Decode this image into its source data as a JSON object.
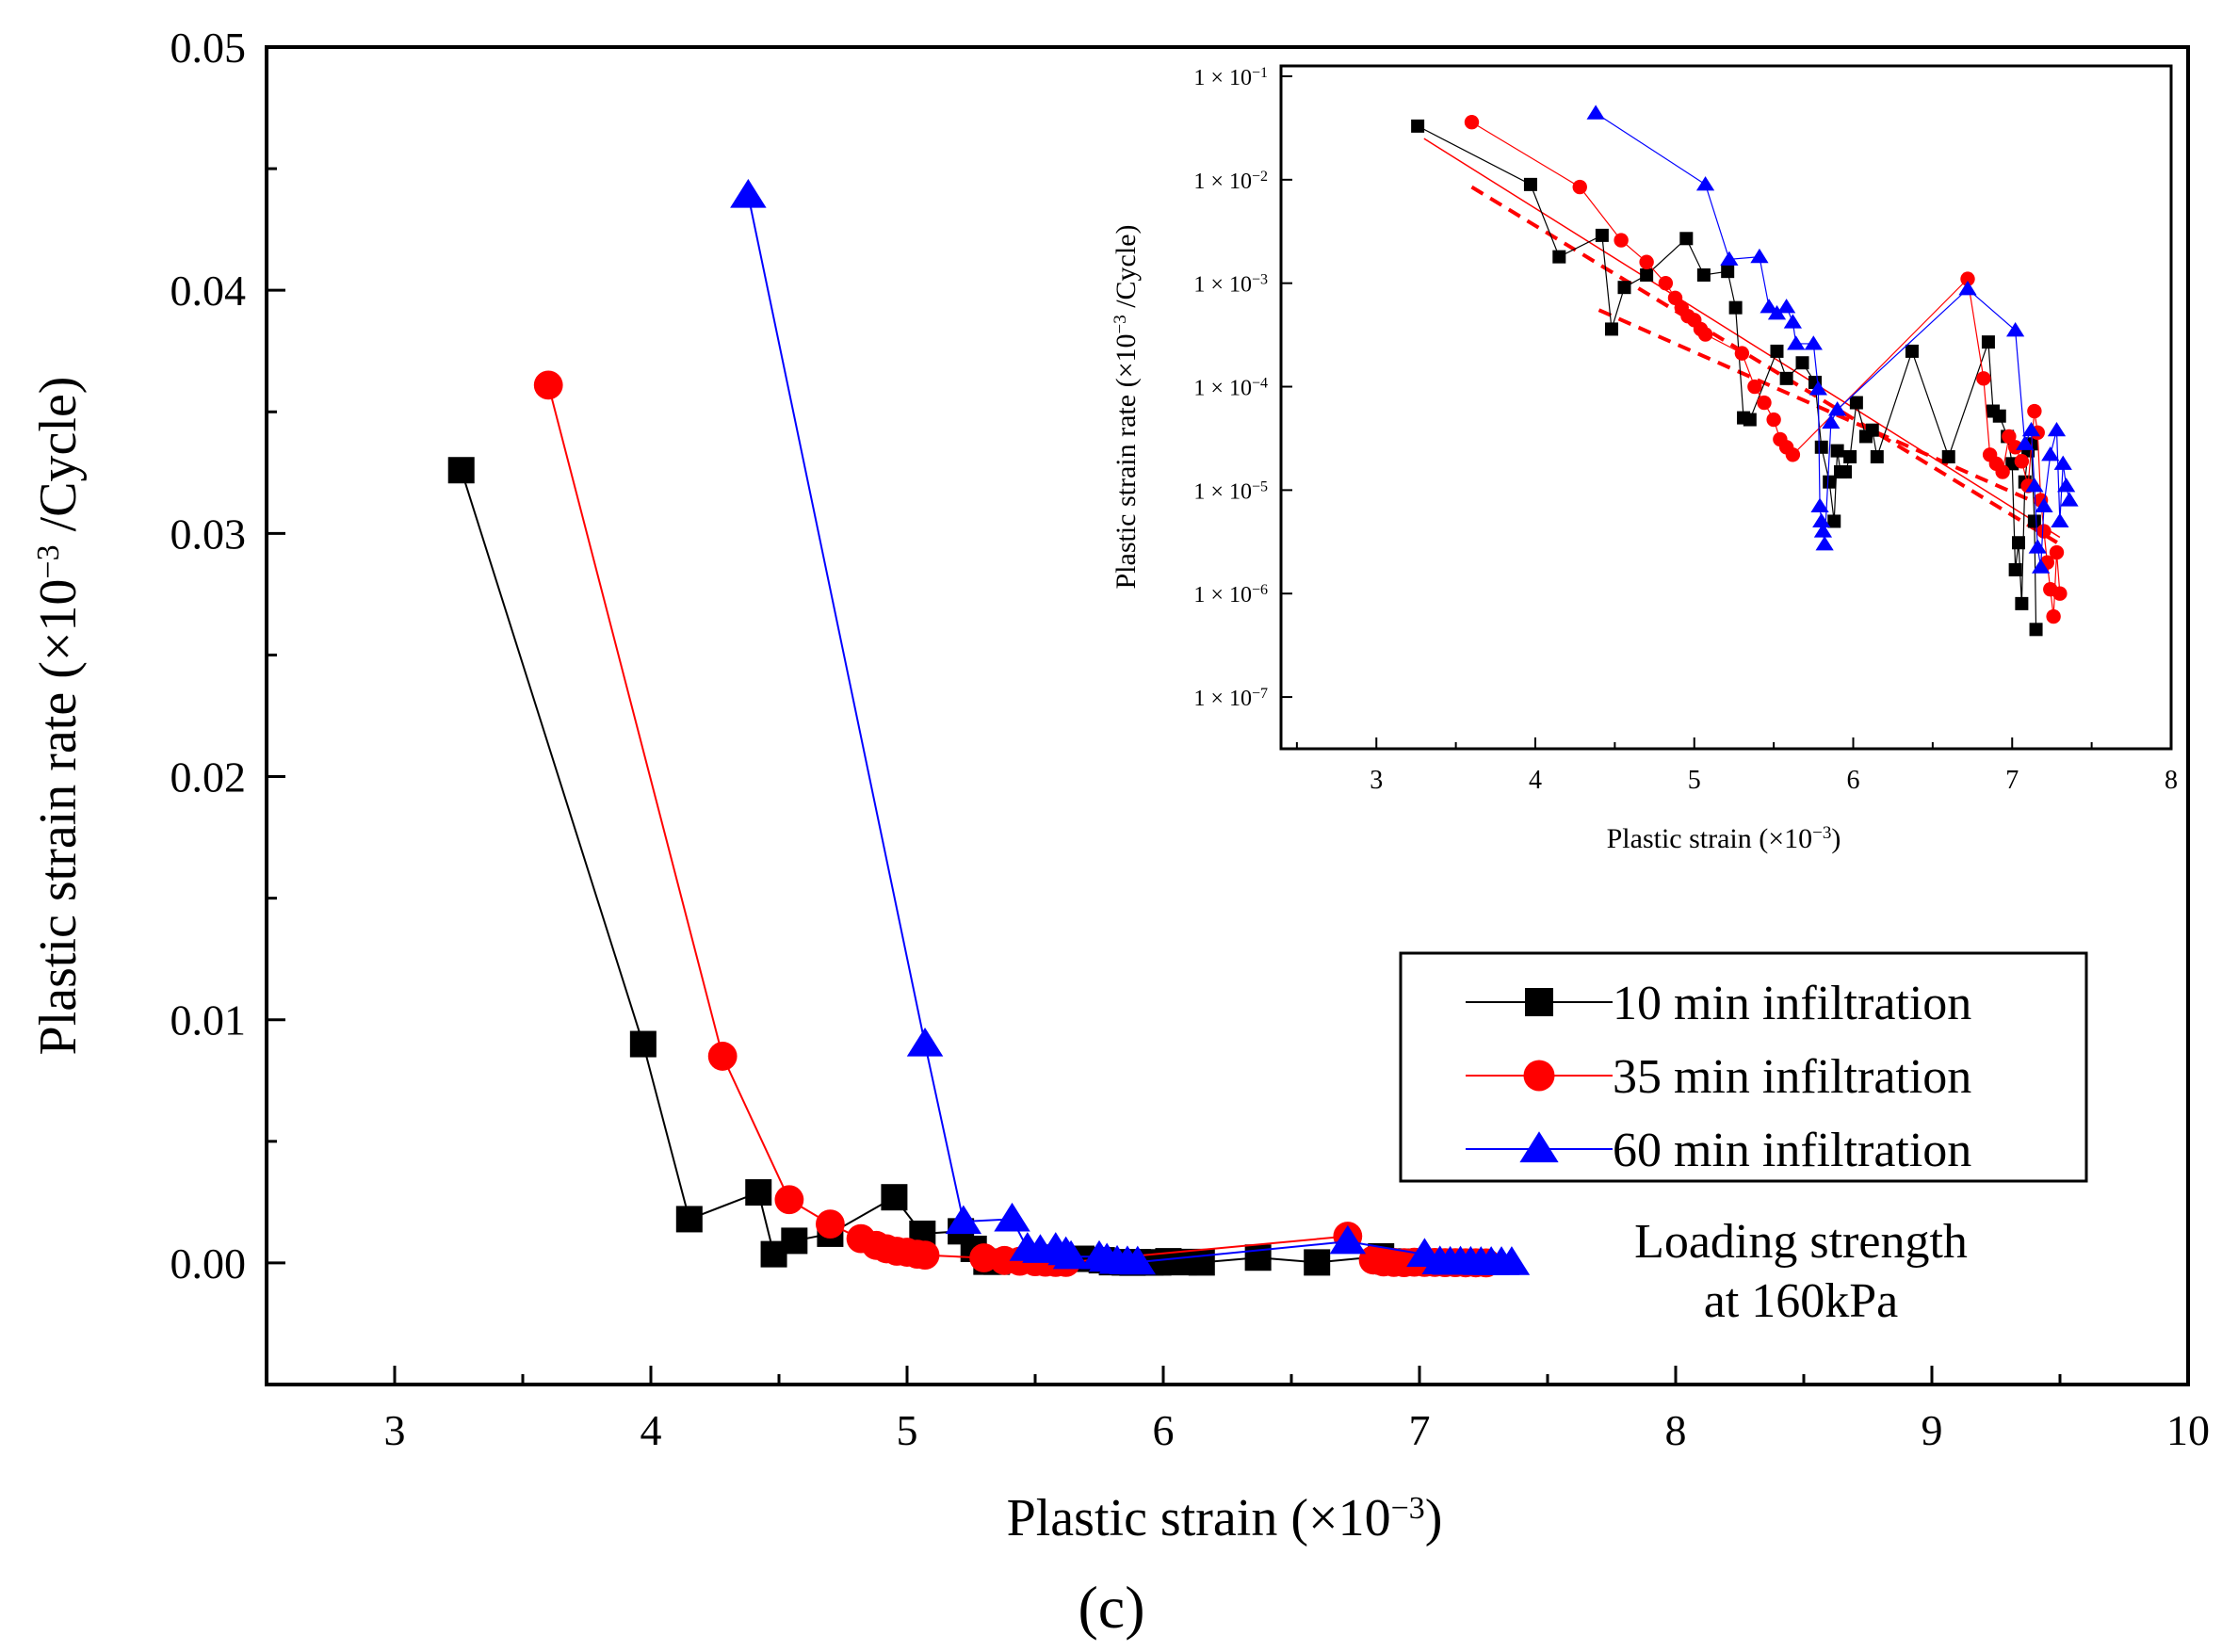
{
  "panel_label": "(c)",
  "colors": {
    "series_10": "#000000",
    "series_35": "#ff0000",
    "series_60": "#0000ff"
  },
  "chart_data": [
    {
      "type": "line",
      "id": "main",
      "title": "",
      "xlabel": "Plastic strain (×10",
      "xlabel_exp": "−3",
      "xlabel_tail": ")",
      "ylabel": "Plastic strain rate (×10",
      "ylabel_exp": "−3",
      "ylabel_tail": " /Cycle)",
      "xlim": [
        2.5,
        10
      ],
      "ylim": [
        -0.005,
        0.05
      ],
      "xticks": [
        3,
        4,
        5,
        6,
        7,
        8,
        9,
        10
      ],
      "xtick_labels": [
        "3",
        "4",
        "5",
        "6",
        "7",
        "8",
        "9",
        "10"
      ],
      "yticks": [
        0,
        0.01,
        0.02,
        0.03,
        0.04,
        0.05
      ],
      "ytick_labels": [
        "0.00",
        "0.01",
        "0.02",
        "0.03",
        "0.04",
        "0.05"
      ],
      "legend_position": "right",
      "annotation": [
        "Loading strength",
        "at 160kPa"
      ],
      "series": [
        {
          "name": "10 min infiltration",
          "marker": "square",
          "color_key": "series_10",
          "x": [
            3.26,
            3.97,
            4.15,
            4.42,
            4.48,
            4.56,
            4.7,
            4.95,
            5.06,
            5.21,
            5.26,
            5.31,
            5.35,
            5.52,
            5.58,
            5.68,
            5.76,
            5.8,
            5.85,
            5.88,
            5.9,
            5.92,
            5.95,
            5.98,
            6.02,
            6.08,
            6.12,
            6.15,
            6.37,
            6.6,
            6.85,
            6.88,
            6.92,
            6.97,
            7.02,
            7.05,
            7.08,
            7.12,
            7.14
          ],
          "y": [
            0.0326,
            0.009,
            0.0018,
            0.0029,
            0.00036,
            0.00091,
            0.0012,
            0.0027,
            0.0012,
            0.0013,
            0.00058,
            5e-05,
            5e-05,
            0.00022,
            0.00012,
            0.00017,
            0.00011,
            3e-05,
            2e-05,
            1e-05,
            3e-05,
            2e-05,
            2e-05,
            2e-05,
            7e-05,
            3e-05,
            4e-05,
            2e-05,
            0.00022,
            2e-05,
            0.00027,
            6e-05,
            5e-05,
            3e-05,
            2e-05,
            1e-05,
            1e-05,
            1e-05,
            5e-06
          ]
        },
        {
          "name": "35 min infiltration",
          "marker": "circle",
          "color_key": "series_35",
          "x": [
            3.6,
            4.28,
            4.54,
            4.7,
            4.82,
            4.88,
            4.92,
            4.96,
            5.0,
            5.04,
            5.07,
            5.3,
            5.38,
            5.44,
            5.5,
            5.54,
            5.58,
            5.62,
            6.72,
            6.82,
            6.86,
            6.9,
            6.94,
            6.98,
            7.02,
            7.06,
            7.1,
            7.14,
            7.18,
            7.22,
            7.26
          ],
          "y": [
            0.0361,
            0.0085,
            0.0026,
            0.0016,
            0.001,
            0.00072,
            0.00058,
            0.00048,
            0.00044,
            0.00036,
            0.00032,
            0.00021,
            0.0001,
            7e-05,
            5e-05,
            3e-05,
            2e-05,
            2e-05,
            0.0011,
            0.00012,
            4e-05,
            2e-05,
            1e-05,
            3e-05,
            2e-05,
            2e-05,
            1e-05,
            1e-05,
            4e-06,
            3e-06,
            2e-06
          ]
        },
        {
          "name": "60 min infiltration",
          "marker": "triangle",
          "color_key": "series_60",
          "x": [
            4.38,
            5.07,
            5.22,
            5.41,
            5.47,
            5.52,
            5.58,
            5.62,
            5.64,
            5.75,
            5.78,
            5.82,
            5.86,
            5.9,
            6.72,
            7.02,
            7.08,
            7.12,
            7.16,
            7.2,
            7.24,
            7.28,
            7.32,
            7.36
          ],
          "y": [
            0.0439,
            0.009,
            0.0017,
            0.0018,
            0.00059,
            0.00051,
            0.00059,
            0.00042,
            0.00026,
            0.00026,
            0.00015,
            6e-05,
            4e-05,
            3e-05,
            0.00088,
            0.00035,
            4e-05,
            2e-05,
            3e-05,
            2e-05,
            1e-05,
            1e-05,
            1e-05,
            1e-05
          ]
        }
      ]
    },
    {
      "type": "line",
      "id": "inset",
      "yscale": "log",
      "xlabel": "Plastic strain (×10",
      "xlabel_exp": "−3",
      "xlabel_tail": ")",
      "ylabel": "Plastic strain rate (×10",
      "ylabel_exp": "−3",
      "ylabel_tail": " /Cycle)",
      "xlim": [
        2.4,
        8
      ],
      "ylim_exp": [
        -7.5,
        -0.9
      ],
      "xticks": [
        3,
        4,
        5,
        6,
        7,
        8
      ],
      "xtick_labels": [
        "3",
        "4",
        "5",
        "6",
        "7",
        "8"
      ],
      "ytick_exps": [
        -7,
        -6,
        -5,
        -4,
        -3,
        -2,
        -1
      ],
      "ytick_base": "1 × 10",
      "ytick_exp_labels": [
        "−7",
        "−6",
        "−5",
        "−4",
        "−3",
        "−2",
        "−1"
      ],
      "trendlines": [
        {
          "style": "dashed",
          "color_key": "series_35",
          "x": [
            3.6,
            7.3
          ],
          "y": [
            0.0085,
            3e-06
          ]
        },
        {
          "style": "dashed",
          "color_key": "series_35",
          "x": [
            4.4,
            7.2
          ],
          "y": [
            0.00055,
            7e-06
          ]
        },
        {
          "style": "solid",
          "color_key": "series_35",
          "x": [
            3.3,
            7.3
          ],
          "y": [
            0.025,
            3.5e-06
          ]
        }
      ],
      "series": [
        {
          "name": "10 min infiltration",
          "marker": "square",
          "color_key": "series_10",
          "x": [
            3.26,
            3.97,
            4.15,
            4.42,
            4.48,
            4.56,
            4.7,
            4.95,
            5.06,
            5.21,
            5.26,
            5.31,
            5.35,
            5.52,
            5.58,
            5.68,
            5.76,
            5.8,
            5.85,
            5.88,
            5.9,
            5.92,
            5.95,
            5.98,
            6.02,
            6.08,
            6.12,
            6.15,
            6.37,
            6.6,
            6.85,
            6.88,
            6.92,
            6.97,
            7.0,
            7.02,
            7.04,
            7.06,
            7.08,
            7.1,
            7.12,
            7.14,
            7.15
          ],
          "y": [
            0.033,
            0.009,
            0.0018,
            0.0029,
            0.00036,
            0.00091,
            0.0012,
            0.0027,
            0.0012,
            0.0013,
            0.00058,
            5e-05,
            4.8e-05,
            0.00022,
            0.00012,
            0.00017,
            0.00011,
            2.6e-05,
            1.2e-05,
            5e-06,
            2.4e-05,
            1.5e-05,
            1.5e-05,
            2.1e-05,
            7e-05,
            3.3e-05,
            3.8e-05,
            2.1e-05,
            0.00022,
            2.1e-05,
            0.00027,
            5.8e-05,
            5.2e-05,
            3.3e-05,
            1.8e-05,
            1.7e-06,
            3.1e-06,
            8e-07,
            1.2e-05,
            2.4e-05,
            2.8e-05,
            5e-06,
            4.5e-07
          ]
        },
        {
          "name": "35 min infiltration",
          "marker": "circle",
          "color_key": "series_35",
          "x": [
            3.6,
            4.28,
            4.54,
            4.7,
            4.82,
            4.88,
            4.92,
            4.96,
            5.0,
            5.04,
            5.07,
            5.3,
            5.38,
            5.44,
            5.5,
            5.54,
            5.58,
            5.62,
            6.72,
            6.82,
            6.86,
            6.9,
            6.94,
            6.98,
            7.02,
            7.06,
            7.1,
            7.14,
            7.16,
            7.18,
            7.2,
            7.22,
            7.24,
            7.26,
            7.28,
            7.3
          ],
          "y": [
            0.036,
            0.0085,
            0.0026,
            0.0016,
            0.001,
            0.00072,
            0.00058,
            0.00048,
            0.00044,
            0.00036,
            0.00032,
            0.00021,
            0.0001,
            7e-05,
            4.8e-05,
            3.1e-05,
            2.6e-05,
            2.2e-05,
            0.0011,
            0.00012,
            2.2e-05,
            1.8e-05,
            1.5e-05,
            3.3e-05,
            2.6e-05,
            1.9e-05,
            1.1e-05,
            5.8e-05,
            3.6e-05,
            8e-06,
            4e-06,
            2e-06,
            1.1e-06,
            6e-07,
            2.5e-06,
            1e-06
          ]
        },
        {
          "name": "60 min infiltration",
          "marker": "triangle",
          "color_key": "series_60",
          "x": [
            4.38,
            5.07,
            5.22,
            5.41,
            5.47,
            5.52,
            5.58,
            5.62,
            5.64,
            5.75,
            5.78,
            5.79,
            5.8,
            5.81,
            5.82,
            5.86,
            5.9,
            6.72,
            7.02,
            7.08,
            7.12,
            7.14,
            7.16,
            7.18,
            7.2,
            7.24,
            7.28,
            7.3,
            7.32,
            7.34,
            7.36
          ],
          "y": [
            0.044,
            0.009,
            0.0017,
            0.0018,
            0.00059,
            0.00051,
            0.00059,
            0.00042,
            0.00026,
            0.00026,
            9.5e-05,
            7e-06,
            5e-06,
            4e-06,
            3e-06,
            4.5e-05,
            6e-05,
            0.00088,
            0.00035,
            2.8e-05,
            3.8e-05,
            1.1e-05,
            2.8e-06,
            1.8e-06,
            7e-06,
            2.2e-05,
            3.8e-05,
            5e-06,
            1.8e-05,
            1.1e-05,
            8e-06
          ]
        }
      ]
    }
  ]
}
